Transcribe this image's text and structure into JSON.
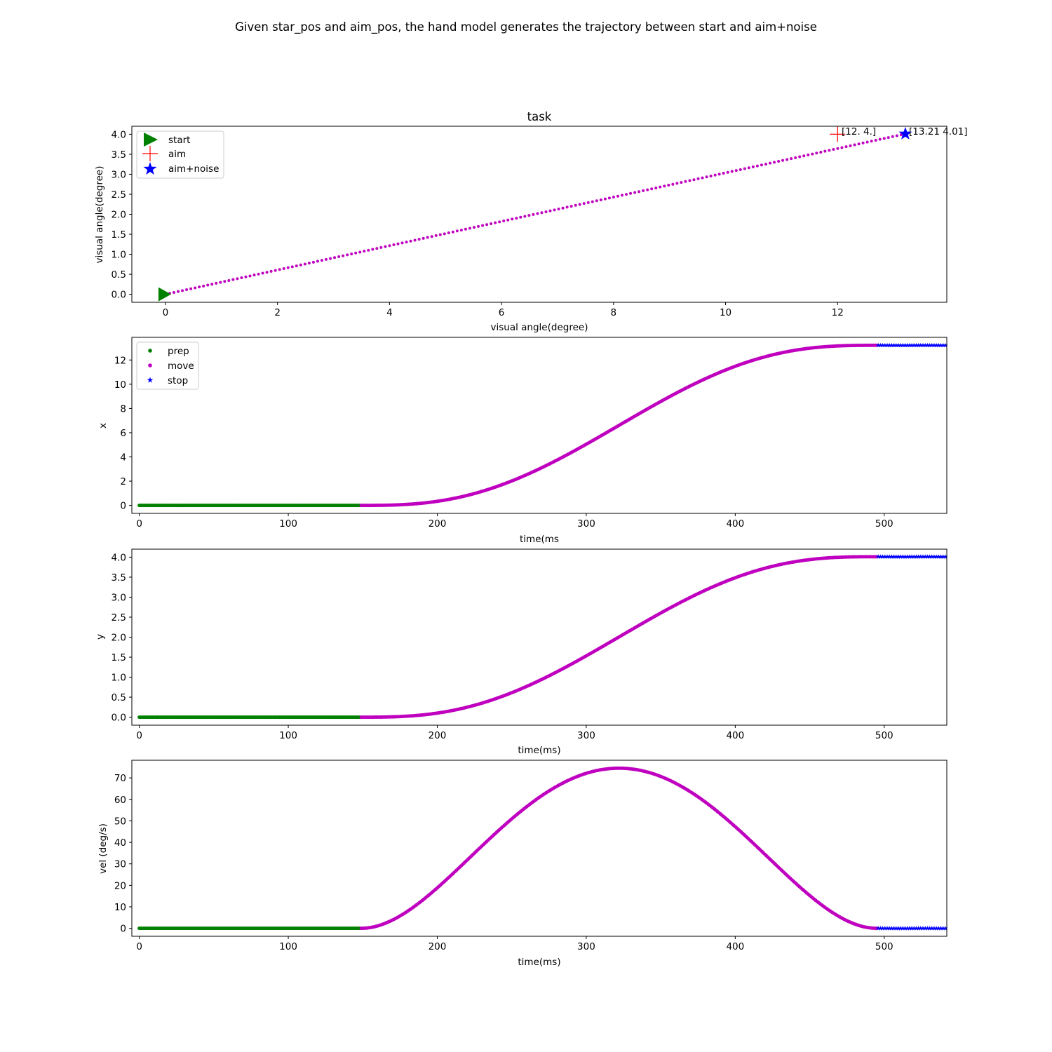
{
  "figure": {
    "suptitle": "Given star_pos and aim_pos, the hand model generates the trajectory between start and aim+noise"
  },
  "colors": {
    "prep": "#008000",
    "move": "#bf00bf",
    "stop": "#0000ff",
    "start": "#008000",
    "aim": "#ff0000",
    "aim_noise": "#0000ff"
  },
  "chart_data": [
    {
      "type": "scatter",
      "title": "task",
      "xlabel": "visual angle(degree)",
      "ylabel": "visual angle(degree)",
      "xlim": [
        -0.6,
        13.95
      ],
      "ylim": [
        -0.2,
        4.2
      ],
      "xticks": [
        0,
        2,
        4,
        6,
        8,
        10,
        12
      ],
      "yticks": [
        0.0,
        0.5,
        1.0,
        1.5,
        2.0,
        2.5,
        3.0,
        3.5,
        4.0
      ],
      "ytick_labels": [
        "0.0",
        "0.5",
        "1.0",
        "1.5",
        "2.0",
        "2.5",
        "3.0",
        "3.5",
        "4.0"
      ],
      "legend": {
        "position": "upper left",
        "entries": [
          "start",
          "aim",
          "aim+noise"
        ]
      },
      "points": {
        "start": [
          0,
          0
        ],
        "aim": [
          12,
          4
        ],
        "aim_noise": [
          13.21,
          4.01
        ]
      },
      "annotations": [
        {
          "text": "[12.  4.]",
          "x": 12,
          "y": 4
        },
        {
          "text": "[13.21  4.01]",
          "x": 13.21,
          "y": 4.01
        }
      ],
      "series": [
        {
          "name": "trajectory",
          "marker": "dot",
          "x_start": 0,
          "y_start": 0,
          "x_end": 13.21,
          "y_end": 4.01,
          "n_points": 176
        }
      ]
    },
    {
      "type": "scatter",
      "xlabel": "time(ms",
      "ylabel": "x",
      "xlim": [
        -5,
        542
      ],
      "ylim": [
        -0.66,
        13.87
      ],
      "xticks": [
        0,
        100,
        200,
        300,
        400,
        500
      ],
      "yticks": [
        0,
        2,
        4,
        6,
        8,
        10,
        12
      ],
      "ytick_labels": [
        "0",
        "2",
        "4",
        "6",
        "8",
        "10",
        "12"
      ],
      "legend": {
        "position": "upper left",
        "entries": [
          "prep",
          "move",
          "stop"
        ]
      },
      "series": [
        {
          "name": "prep",
          "t_start": 0,
          "t_end": 148,
          "value": 0
        },
        {
          "name": "move",
          "t_start": 149,
          "t_end": 495,
          "from": 0,
          "to": 13.21
        },
        {
          "name": "stop",
          "t_start": 496,
          "t_end": 547,
          "value": 13.21
        }
      ]
    },
    {
      "type": "scatter",
      "xlabel": "time(ms)",
      "ylabel": "y",
      "xlim": [
        -5,
        542
      ],
      "ylim": [
        -0.2,
        4.2
      ],
      "xticks": [
        0,
        100,
        200,
        300,
        400,
        500
      ],
      "yticks": [
        0.0,
        0.5,
        1.0,
        1.5,
        2.0,
        2.5,
        3.0,
        3.5,
        4.0
      ],
      "ytick_labels": [
        "0.0",
        "0.5",
        "1.0",
        "1.5",
        "2.0",
        "2.5",
        "3.0",
        "3.5",
        "4.0"
      ],
      "series": [
        {
          "name": "prep",
          "t_start": 0,
          "t_end": 148,
          "value": 0
        },
        {
          "name": "move",
          "t_start": 149,
          "t_end": 495,
          "from": 0,
          "to": 4.01
        },
        {
          "name": "stop",
          "t_start": 496,
          "t_end": 547,
          "value": 4.01
        }
      ]
    },
    {
      "type": "scatter",
      "xlabel": "time(ms)",
      "ylabel": "vel (deg/s)",
      "xlim": [
        -5,
        542
      ],
      "ylim": [
        -3.7,
        78.2
      ],
      "xticks": [
        0,
        100,
        200,
        300,
        400,
        500
      ],
      "yticks": [
        0,
        10,
        20,
        30,
        40,
        50,
        60,
        70
      ],
      "ytick_labels": [
        "0",
        "10",
        "20",
        "30",
        "40",
        "50",
        "60",
        "70"
      ],
      "series": [
        {
          "name": "prep",
          "t_start": 0,
          "t_end": 148,
          "value": 0
        },
        {
          "name": "move",
          "t_start": 149,
          "t_end": 495,
          "peak": 74.5,
          "peak_t": 322
        },
        {
          "name": "stop",
          "t_start": 496,
          "t_end": 547,
          "value": 0
        }
      ]
    }
  ]
}
